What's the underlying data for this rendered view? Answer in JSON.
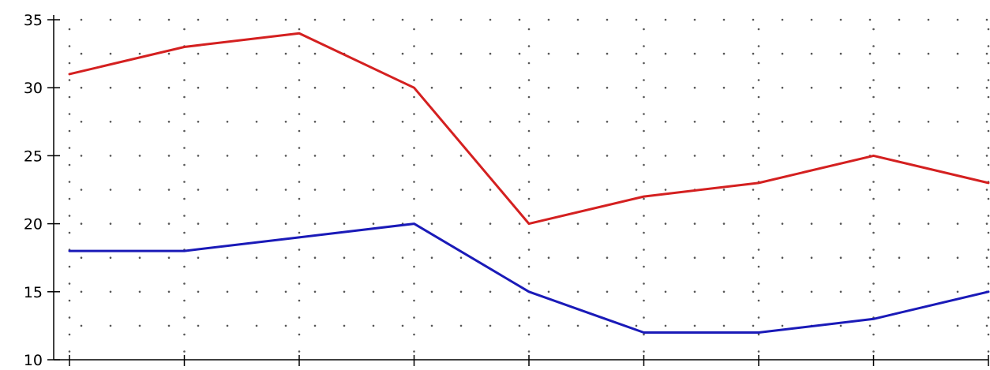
{
  "chart_data": {
    "type": "line",
    "title": "",
    "xlabel": "",
    "ylabel": "",
    "x": [
      1,
      2,
      3,
      4,
      5,
      6,
      7,
      8,
      9
    ],
    "xlim": [
      1,
      9
    ],
    "ylim": [
      10,
      35
    ],
    "y_ticks": [
      10,
      15,
      20,
      25,
      30,
      35
    ],
    "y_tick_labels": [
      "10",
      "15",
      "20",
      "25",
      "30",
      "35"
    ],
    "grid": "dotted",
    "legend": "none",
    "series": [
      {
        "color": "#d42020",
        "values": [
          31,
          33,
          34,
          30,
          20,
          22,
          23,
          25,
          23
        ]
      },
      {
        "color": "#1a1ab8",
        "values": [
          18,
          18,
          19,
          20,
          15,
          12,
          12,
          13,
          15
        ]
      }
    ]
  }
}
